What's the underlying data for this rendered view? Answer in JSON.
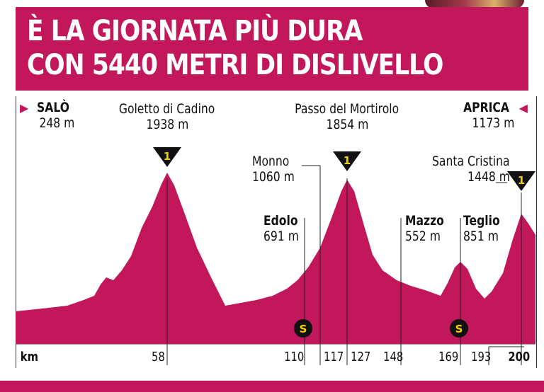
{
  "title": {
    "line1": "È LA GIORNATA PIÙ DURA",
    "line2": "CON 5440 METRI DI DISLIVELLO"
  },
  "start": {
    "name": "SALÒ",
    "elevation": "248 m"
  },
  "finish": {
    "name": "APRICA",
    "elevation": "1173 m"
  },
  "climbs": [
    {
      "name": "Goletto di Cadino",
      "elevation": "1938 m",
      "category": "1"
    },
    {
      "name": "Passo del Mortirolo",
      "elevation": "1854 m",
      "category": "1"
    },
    {
      "name": "Santa Cristina",
      "elevation": "1448 m",
      "category": "1"
    }
  ],
  "places": [
    {
      "name": "Monno",
      "elevation": "1060 m"
    },
    {
      "name": "Edolo",
      "elevation": "691 m"
    },
    {
      "name": "Mazzo",
      "elevation": "552 m"
    },
    {
      "name": "Teglio",
      "elevation": "851 m"
    }
  ],
  "sprint_symbol": "S",
  "km_axis": {
    "label": "km",
    "ticks": [
      "58",
      "110",
      "117",
      "127",
      "148",
      "169",
      "193",
      "200"
    ]
  },
  "colors": {
    "accent": "#c2185b",
    "profile_fill": "#c2185b",
    "kom_marker": "#111111",
    "kom_number": "#f5d000"
  }
}
